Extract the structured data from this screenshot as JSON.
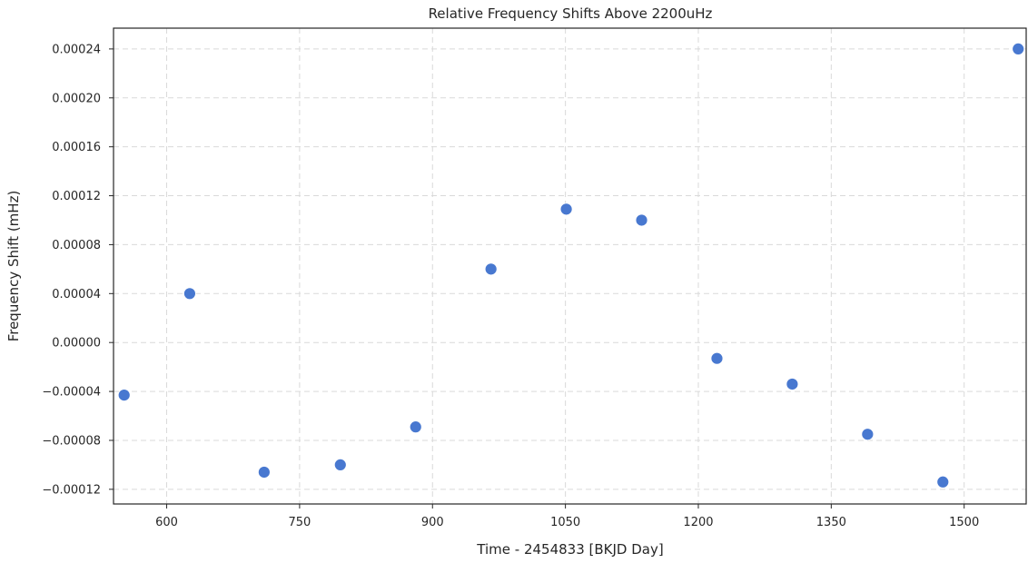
{
  "chart_data": {
    "type": "scatter",
    "title": "Relative Frequency Shifts Above 2200uHz",
    "xlabel": "Time - 2454833 [BKJD Day]",
    "ylabel": "Frequency Shift (mHz)",
    "xlim": [
      540,
      1570
    ],
    "ylim": [
      -0.000132,
      0.000257
    ],
    "xticks": [
      600,
      750,
      900,
      1050,
      1200,
      1350,
      1500
    ],
    "xtick_labels": [
      "600",
      "750",
      "900",
      "1050",
      "1200",
      "1350",
      "1500"
    ],
    "yticks": [
      -0.00012,
      -8e-05,
      -4e-05,
      0.0,
      4e-05,
      8e-05,
      0.00012,
      0.00016,
      0.0002,
      0.00024
    ],
    "ytick_labels": [
      "−0.00012",
      "−0.00008",
      "−0.00004",
      "0.00000",
      "0.00004",
      "0.00008",
      "0.00012",
      "0.00016",
      "0.00020",
      "0.00024"
    ],
    "grid": true,
    "marker_color": "#4878d0",
    "points": [
      {
        "x": 552,
        "y": -4.3e-05
      },
      {
        "x": 626,
        "y": 4e-05
      },
      {
        "x": 710,
        "y": -0.000106
      },
      {
        "x": 796,
        "y": -0.0001
      },
      {
        "x": 881,
        "y": -6.9e-05
      },
      {
        "x": 966,
        "y": 6e-05
      },
      {
        "x": 1051,
        "y": 0.000109
      },
      {
        "x": 1136,
        "y": 0.0001
      },
      {
        "x": 1221,
        "y": -1.3e-05
      },
      {
        "x": 1306,
        "y": -3.4e-05
      },
      {
        "x": 1391,
        "y": -7.5e-05
      },
      {
        "x": 1476,
        "y": -0.000114
      },
      {
        "x": 1561,
        "y": 0.00024
      }
    ]
  }
}
